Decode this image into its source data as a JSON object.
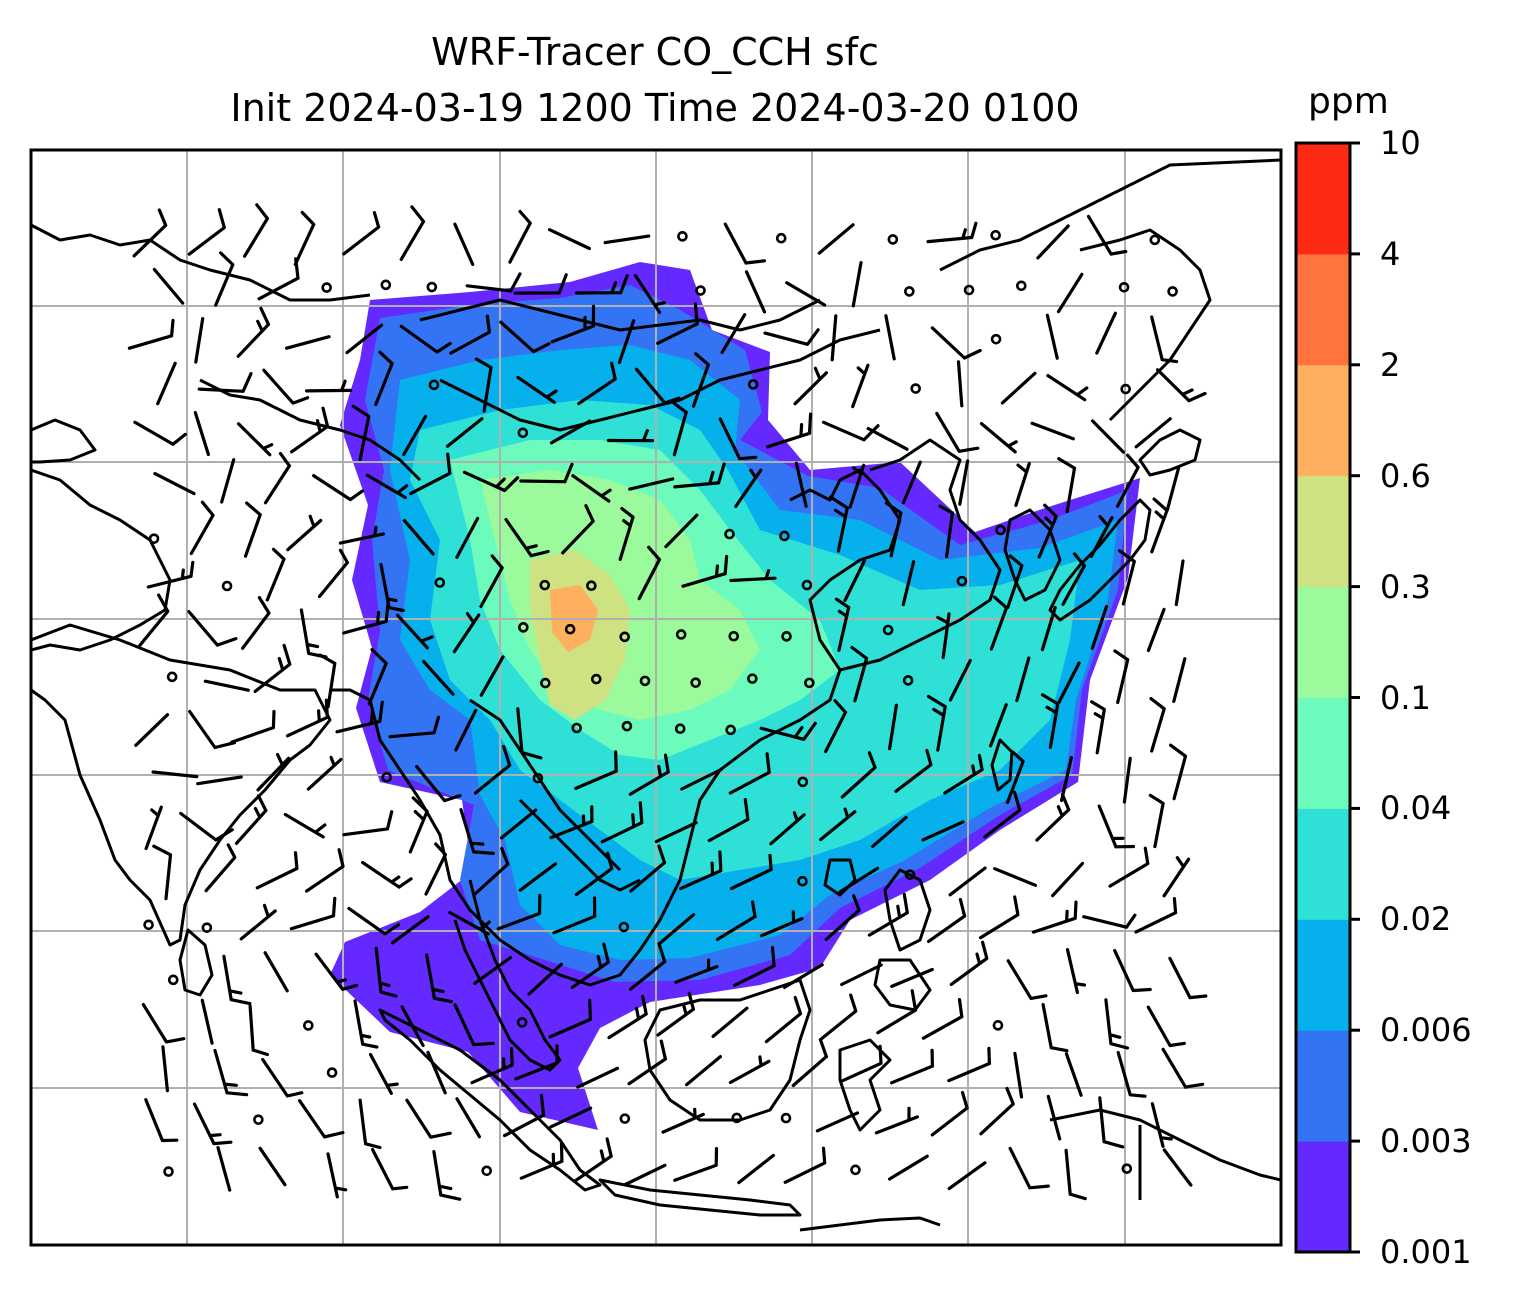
{
  "title": {
    "line1": "WRF-Tracer CO_CCH sfc",
    "line2": "Init 2024-03-19 1200 Time 2024-03-20 0100"
  },
  "colorbar": {
    "unit": "ppm",
    "levels": [
      "0.001",
      "0.003",
      "0.006",
      "0.02",
      "0.04",
      "0.1",
      "0.3",
      "0.6",
      "2",
      "4",
      "10"
    ],
    "colors": [
      "#6329ff",
      "#3374f4",
      "#06b0ec",
      "#2ee0d6",
      "#6cfbbd",
      "#9afa9c",
      "#cee281",
      "#ffb05f",
      "#ff743e",
      "#ff2a15"
    ]
  },
  "map": {
    "gridlines": true,
    "coastline_color": "#000000",
    "grid_color": "#b0b0b0",
    "wind_barbs": true
  }
}
